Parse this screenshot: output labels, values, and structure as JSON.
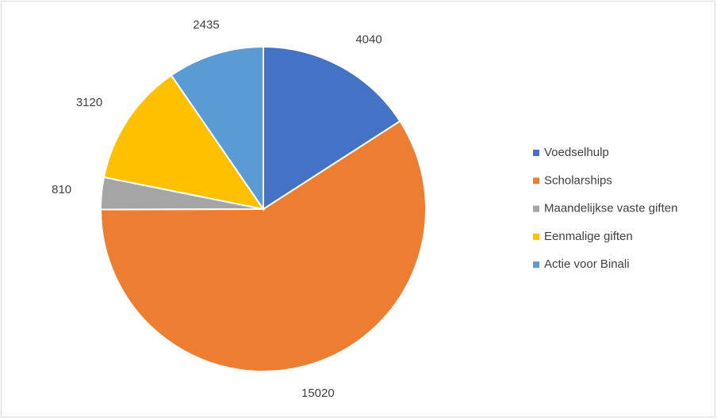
{
  "chart_data": {
    "type": "pie",
    "categories": [
      "Voedselhulp",
      "Scholarships",
      "Maandelijkse vaste giften",
      "Eenmalige giften",
      "Actie voor Binali"
    ],
    "values": [
      4040,
      15020,
      810,
      3120,
      2435
    ],
    "colors": [
      "#4472c4",
      "#ed7d31",
      "#a5a5a5",
      "#ffc000",
      "#5b9bd5"
    ],
    "legend": "right"
  }
}
